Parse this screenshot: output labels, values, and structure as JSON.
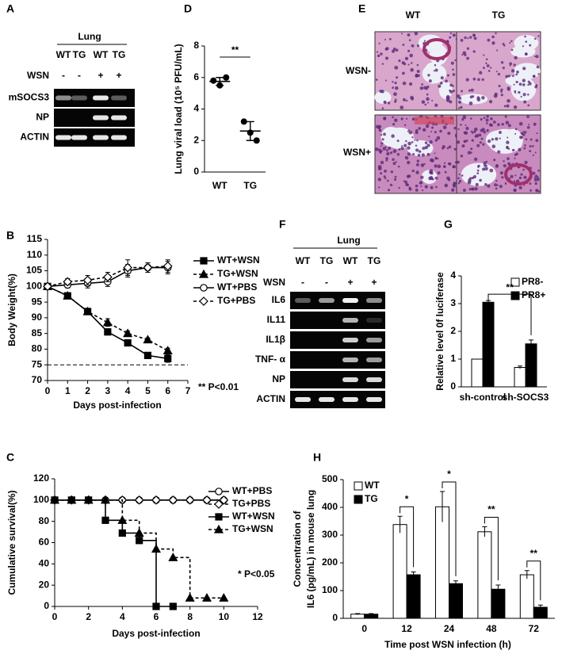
{
  "panel_labels": [
    "A",
    "B",
    "C",
    "D",
    "E",
    "F",
    "G",
    "H"
  ],
  "gel_A": {
    "tissue": "Lung",
    "lanes": [
      "WT",
      "TG",
      "WT",
      "TG"
    ],
    "treatment": "WSN",
    "treatment_signs": [
      "-",
      "-",
      "+",
      "+"
    ],
    "rows": [
      "mSOCS3",
      "NP",
      "ACTIN"
    ]
  },
  "histology_E": {
    "columns": [
      "WT",
      "TG"
    ],
    "rows": [
      "WSN-",
      "WSN+"
    ]
  },
  "gel_F": {
    "tissue": "Lung",
    "lanes": [
      "WT",
      "TG",
      "WT",
      "TG"
    ],
    "treatment": "WSN",
    "treatment_signs": [
      "-",
      "-",
      "+",
      "+"
    ],
    "rows": [
      "IL6",
      "IL11",
      "IL1β",
      "TNF- α",
      "NP",
      "ACTIN"
    ]
  },
  "chart_data": [
    {
      "type": "line",
      "xlabel": "Days post-infection",
      "ylabel": "Body Weight(%)",
      "x": [
        0,
        1,
        2,
        3,
        4,
        5,
        6
      ],
      "xlim": [
        0,
        7
      ],
      "xticks": [
        0,
        1,
        2,
        3,
        4,
        5,
        6,
        7
      ],
      "ylim": [
        70,
        115
      ],
      "yticks": [
        70,
        75,
        80,
        85,
        90,
        95,
        100,
        105,
        110,
        115
      ],
      "reference_line": 75,
      "annotation": "** P<0.01",
      "legend": "right",
      "series": [
        {
          "name": "WT+WSN",
          "color": "#000000",
          "marker": "square",
          "filled": true,
          "dashed": false,
          "values": [
            100,
            97,
            92,
            85.5,
            82,
            78,
            77
          ],
          "errors": [
            0.3,
            0.5,
            0.5,
            1,
            0.8,
            0.6,
            1.2
          ]
        },
        {
          "name": "TG+WSN",
          "color": "#000000",
          "marker": "triangle",
          "filled": true,
          "dashed": true,
          "values": [
            100,
            97,
            92,
            88.5,
            85,
            83,
            79.5
          ],
          "errors": [
            0.3,
            0.5,
            0.5,
            1.2,
            0.8,
            0.6,
            0.8
          ]
        },
        {
          "name": "WT+PBS",
          "color": "#000000",
          "marker": "circle",
          "filled": false,
          "dashed": false,
          "values": [
            100,
            100.5,
            101,
            101.5,
            105,
            106,
            106
          ],
          "errors": [
            0.3,
            1,
            1.5,
            1.5,
            2,
            1.5,
            2
          ]
        },
        {
          "name": "TG+PBS",
          "color": "#000000",
          "marker": "diamond",
          "filled": false,
          "dashed": true,
          "values": [
            100,
            101.5,
            102,
            103,
            106,
            106,
            106.5
          ],
          "errors": [
            0.3,
            1,
            1.5,
            1.5,
            2.5,
            1.5,
            2
          ]
        }
      ]
    },
    {
      "type": "step",
      "xlabel": "Days post-infection",
      "ylabel": "Cumulative survival(%)",
      "xlim": [
        0,
        12
      ],
      "xticks": [
        0,
        2,
        4,
        6,
        8,
        10,
        12
      ],
      "ylim": [
        0,
        120
      ],
      "yticks": [
        0,
        20,
        40,
        60,
        80,
        100,
        120
      ],
      "annotation": "* P<0.05",
      "legend": "right",
      "series": [
        {
          "name": "WT+PBS",
          "color": "#000000",
          "marker": "circle",
          "filled": false,
          "dashed": false,
          "x": [
            0,
            1,
            2,
            3,
            4,
            5,
            6,
            7,
            8,
            9,
            10
          ],
          "values": [
            100,
            100,
            100,
            100,
            100,
            100,
            100,
            100,
            100,
            100,
            100
          ]
        },
        {
          "name": "TG+PBS",
          "color": "#000000",
          "marker": "diamond",
          "filled": false,
          "dashed": true,
          "x": [
            0,
            1,
            2,
            3,
            4,
            5,
            6,
            7,
            8,
            9,
            10
          ],
          "values": [
            100,
            100,
            100,
            100,
            100,
            100,
            100,
            100,
            100,
            100,
            100
          ]
        },
        {
          "name": "WT+WSN",
          "color": "#000000",
          "marker": "square",
          "filled": true,
          "dashed": false,
          "x": [
            0,
            1,
            2,
            3,
            4,
            5,
            6,
            7
          ],
          "values": [
            100,
            100,
            100,
            81,
            69,
            62,
            0,
            0
          ]
        },
        {
          "name": "TG+WSN",
          "color": "#000000",
          "marker": "triangle",
          "filled": true,
          "dashed": true,
          "x": [
            0,
            1,
            2,
            3,
            4,
            5,
            6,
            7,
            8,
            9,
            10
          ],
          "values": [
            100,
            100,
            100,
            100,
            81,
            69,
            54,
            46,
            8,
            8,
            8
          ]
        }
      ]
    },
    {
      "type": "dot",
      "ylabel": "Lung viral load (10⁵ PFU/mL)",
      "categories": [
        "WT",
        "TG"
      ],
      "points": [
        [
          5.8,
          5.5,
          6.0
        ],
        [
          3.2,
          2.5,
          2.0
        ]
      ],
      "means": [
        5.75,
        2.6
      ],
      "errors": [
        0.25,
        0.6
      ],
      "ylim": [
        0,
        8
      ],
      "yticks": [
        0,
        2,
        4,
        6,
        8
      ],
      "annotation": "**"
    },
    {
      "type": "bar",
      "ylabel": "Relative level 0f luciferase",
      "categories": [
        "sh-control",
        "sh-SOCS3"
      ],
      "ylim": [
        0,
        4
      ],
      "yticks": [
        0,
        1,
        2,
        3,
        4
      ],
      "annotation": "**",
      "legend": "top-right",
      "series": [
        {
          "name": "PR8-",
          "color": "#ffffff",
          "values": [
            1,
            0.7
          ],
          "errors": [
            0,
            0.05
          ]
        },
        {
          "name": "PR8+",
          "color": "#000000",
          "values": [
            3.05,
            1.55
          ],
          "errors": [
            0.06,
            0.14
          ]
        }
      ]
    },
    {
      "type": "bar",
      "xlabel": "Time post WSN infection (h)",
      "ylabel": [
        "Concentration of",
        "IL6 (pg/mL) in mouse lung"
      ],
      "categories": [
        "0",
        "12",
        "24",
        "48",
        "72"
      ],
      "ylim": [
        0,
        500
      ],
      "yticks": [
        0,
        100,
        200,
        300,
        400,
        500
      ],
      "annotations": [
        null,
        "*",
        "*",
        "**",
        "**"
      ],
      "legend": "top-left",
      "series": [
        {
          "name": "WT",
          "color": "#ffffff",
          "values": [
            15,
            338,
            402,
            312,
            157
          ],
          "errors": [
            2,
            30,
            55,
            18,
            15
          ]
        },
        {
          "name": "TG",
          "color": "#000000",
          "values": [
            15,
            157,
            125,
            105,
            40
          ],
          "errors": [
            2,
            10,
            10,
            15,
            8
          ]
        }
      ]
    }
  ]
}
